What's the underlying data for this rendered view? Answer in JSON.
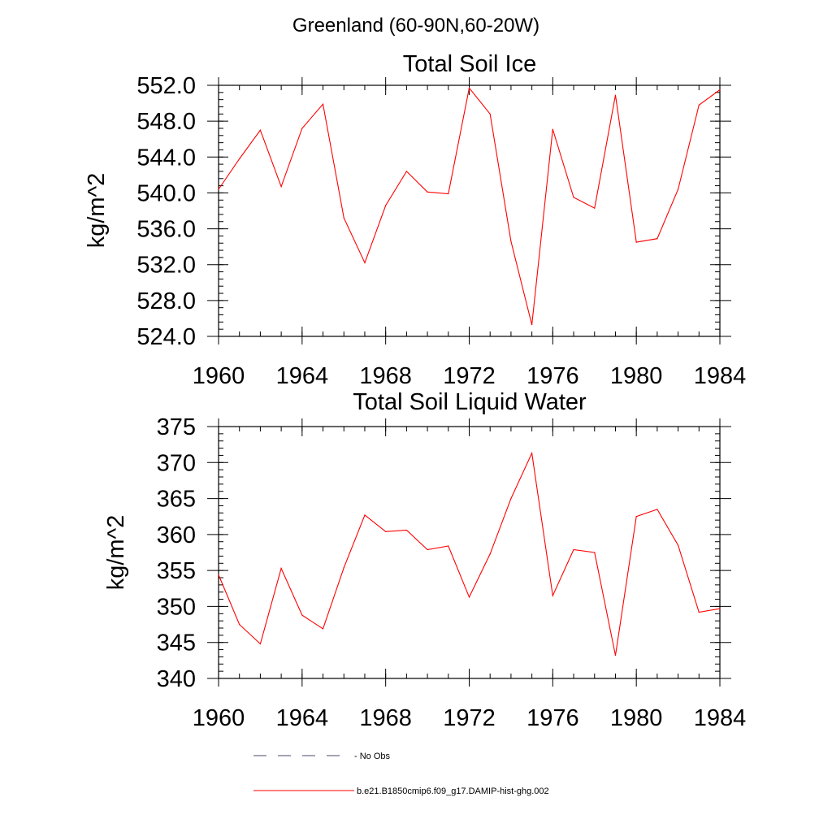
{
  "page": {
    "title": "Greenland (60-90N,60-20W)"
  },
  "chart_data": [
    {
      "type": "line",
      "title": "Total Soil Ice",
      "xlabel": "",
      "ylabel": "kg/m^2",
      "xlim": [
        1960,
        1984
      ],
      "ylim": [
        524,
        552
      ],
      "x_ticks": [
        "1960",
        "1964",
        "1968",
        "1972",
        "1976",
        "1980",
        "1984"
      ],
      "y_ticks": [
        "524.0",
        "528.0",
        "532.0",
        "536.0",
        "540.0",
        "544.0",
        "548.0",
        "552.0"
      ],
      "y_tick_values": [
        524,
        528,
        532,
        536,
        540,
        544,
        548,
        552
      ],
      "series": [
        {
          "name": "b.e21.B1850cmip6.f09_g17.DAMIP-hist-ghg.002",
          "color": "#ff0000",
          "x": [
            1960,
            1961,
            1962,
            1963,
            1964,
            1965,
            1966,
            1967,
            1968,
            1969,
            1970,
            1971,
            1972,
            1973,
            1974,
            1975,
            1976,
            1977,
            1978,
            1979,
            1980,
            1981,
            1982,
            1983,
            1984
          ],
          "values": [
            540.4,
            543.8,
            547.0,
            540.7,
            547.2,
            549.9,
            537.2,
            532.2,
            538.6,
            542.4,
            540.1,
            539.9,
            551.7,
            548.8,
            534.6,
            525.3,
            547.1,
            539.5,
            538.3,
            550.9,
            534.5,
            534.9,
            540.4,
            549.8,
            551.5
          ]
        }
      ]
    },
    {
      "type": "line",
      "title": "Total Soil Liquid Water",
      "xlabel": "",
      "ylabel": "kg/m^2",
      "xlim": [
        1960,
        1984
      ],
      "ylim": [
        340,
        375
      ],
      "x_ticks": [
        "1960",
        "1964",
        "1968",
        "1972",
        "1976",
        "1980",
        "1984"
      ],
      "y_ticks": [
        "340",
        "345",
        "350",
        "355",
        "360",
        "365",
        "370",
        "375"
      ],
      "y_tick_values": [
        340,
        345,
        350,
        355,
        360,
        365,
        370,
        375
      ],
      "series": [
        {
          "name": "b.e21.B1850cmip6.f09_g17.DAMIP-hist-ghg.002",
          "color": "#ff0000",
          "x": [
            1960,
            1961,
            1962,
            1963,
            1964,
            1965,
            1966,
            1967,
            1968,
            1969,
            1970,
            1971,
            1972,
            1973,
            1974,
            1975,
            1976,
            1977,
            1978,
            1979,
            1980,
            1981,
            1982,
            1983,
            1984
          ],
          "values": [
            354.4,
            347.5,
            344.8,
            355.3,
            348.8,
            346.9,
            355.4,
            362.7,
            360.4,
            360.6,
            357.9,
            358.4,
            351.3,
            357.3,
            365.0,
            371.3,
            351.5,
            357.9,
            357.5,
            343.2,
            362.5,
            363.5,
            358.5,
            349.2,
            349.7
          ]
        }
      ]
    }
  ],
  "legend": {
    "entries": [
      {
        "label": "No Obs",
        "color": "#4a4a6a",
        "style": "dashed"
      },
      {
        "label": "b.e21.B1850cmip6.f09_g17.DAMIP-hist-ghg.002",
        "color": "#ff0000",
        "style": "solid"
      }
    ]
  }
}
